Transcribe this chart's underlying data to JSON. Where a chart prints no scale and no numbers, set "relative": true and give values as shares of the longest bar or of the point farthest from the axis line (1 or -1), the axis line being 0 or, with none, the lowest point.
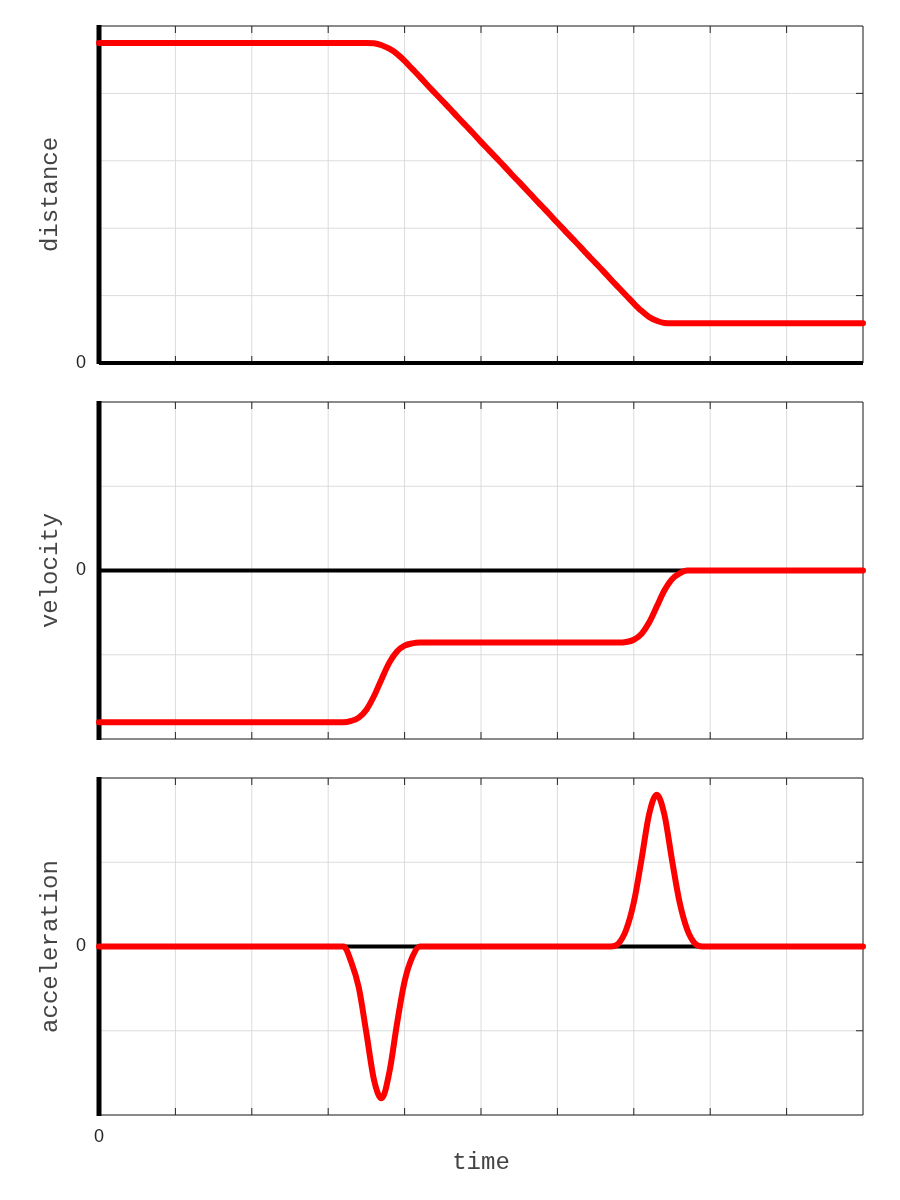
{
  "chart_data": [
    {
      "type": "line",
      "ylabel": "distance",
      "relative": true,
      "grid": true,
      "color": "#ff0000",
      "ref_lines": [
        {
          "axis": "y",
          "value": 0,
          "label": "0",
          "color": "#000000"
        }
      ],
      "categories": [
        null,
        null,
        null,
        null,
        null,
        null,
        null,
        null,
        null,
        null,
        null,
        null,
        null,
        null,
        null,
        null,
        null,
        null,
        null,
        null,
        null,
        null,
        null,
        null,
        null,
        null,
        null,
        null,
        null,
        null,
        null,
        null,
        null,
        null,
        null,
        null,
        null,
        null,
        null,
        null,
        null,
        null,
        null,
        null,
        null,
        null,
        null,
        null,
        null,
        null,
        null,
        null,
        null,
        null,
        null,
        null,
        null,
        null,
        null,
        null,
        null,
        null,
        null,
        null,
        null,
        null,
        null,
        null,
        null,
        null,
        null,
        null,
        null,
        null,
        null,
        null,
        null,
        null,
        null,
        null,
        null,
        null,
        null,
        null,
        null,
        null,
        null,
        null,
        null,
        null,
        null,
        null,
        null,
        null,
        null,
        null,
        null,
        null,
        null,
        null,
        null
      ],
      "values": [
        1,
        1,
        1,
        1,
        1,
        1,
        1,
        1,
        1,
        1,
        1,
        1,
        1,
        1,
        1,
        1,
        1,
        1,
        1,
        1,
        1,
        1,
        1,
        1,
        1,
        1,
        1,
        1,
        1,
        1,
        1,
        1,
        1,
        1,
        1,
        1,
        0.999,
        0.993,
        0.982,
        0.966,
        0.944,
        0.919,
        0.894,
        0.868,
        0.843,
        0.818,
        0.793,
        0.767,
        0.742,
        0.717,
        0.691,
        0.666,
        0.641,
        0.616,
        0.59,
        0.565,
        0.54,
        0.514,
        0.489,
        0.464,
        0.438,
        0.413,
        0.388,
        0.363,
        0.337,
        0.312,
        0.287,
        0.261,
        0.236,
        0.211,
        0.186,
        0.163,
        0.144,
        0.132,
        0.125,
        0.124,
        0.124,
        0.124,
        0.124,
        0.124,
        0.124,
        0.124,
        0.124,
        0.124,
        0.124,
        0.124,
        0.124,
        0.124,
        0.124,
        0.124,
        0.124,
        0.124,
        0.124,
        0.124,
        0.124,
        0.124,
        0.124,
        0.124,
        0.124,
        0.124,
        0.124
      ]
    },
    {
      "type": "line",
      "ylabel": "velocity",
      "relative": true,
      "grid": true,
      "color": "#ff0000",
      "ref_lines": [
        {
          "axis": "y",
          "value": 0,
          "label": "0",
          "color": "#000000"
        }
      ],
      "categories": [
        null,
        null,
        null,
        null,
        null,
        null,
        null,
        null,
        null,
        null,
        null,
        null,
        null,
        null,
        null,
        null,
        null,
        null,
        null,
        null,
        null,
        null,
        null,
        null,
        null,
        null,
        null,
        null,
        null,
        null,
        null,
        null,
        null,
        null,
        null,
        null,
        null,
        null,
        null,
        null,
        null,
        null,
        null,
        null,
        null,
        null,
        null,
        null,
        null,
        null,
        null,
        null,
        null,
        null,
        null,
        null,
        null,
        null,
        null,
        null,
        null,
        null,
        null,
        null,
        null,
        null,
        null,
        null,
        null,
        null,
        null,
        null,
        null,
        null,
        null,
        null,
        null,
        null,
        null,
        null,
        null,
        null,
        null,
        null,
        null,
        null,
        null,
        null,
        null,
        null,
        null,
        null,
        null,
        null,
        null,
        null,
        null,
        null,
        null,
        null,
        null
      ],
      "values": [
        -1,
        -1,
        -1,
        -1,
        -1,
        -1,
        -1,
        -1,
        -1,
        -1,
        -1,
        -1,
        -1,
        -1,
        -1,
        -1,
        -1,
        -1,
        -1,
        -1,
        -1,
        -1,
        -1,
        -1,
        -1,
        -1,
        -1,
        -1,
        -1,
        -1,
        -1,
        -1,
        -1,
        -0.991,
        -0.969,
        -0.917,
        -0.827,
        -0.714,
        -0.607,
        -0.533,
        -0.495,
        -0.48,
        -0.475,
        -0.475,
        -0.475,
        -0.475,
        -0.475,
        -0.475,
        -0.475,
        -0.475,
        -0.475,
        -0.475,
        -0.475,
        -0.475,
        -0.475,
        -0.475,
        -0.475,
        -0.475,
        -0.475,
        -0.475,
        -0.475,
        -0.475,
        -0.475,
        -0.475,
        -0.475,
        -0.475,
        -0.475,
        -0.475,
        -0.475,
        -0.471,
        -0.456,
        -0.418,
        -0.343,
        -0.238,
        -0.132,
        -0.057,
        -0.019,
        0,
        0,
        0,
        0,
        0,
        0,
        0,
        0,
        0,
        0,
        0,
        0,
        0,
        0,
        0,
        0,
        0,
        0,
        0,
        0,
        0,
        0,
        0,
        0
      ]
    },
    {
      "type": "line",
      "ylabel": "acceleration",
      "xlabel": "time",
      "relative": true,
      "grid": true,
      "color": "#ff0000",
      "ref_lines": [
        {
          "axis": "y",
          "value": 0,
          "label": "0",
          "color": "#000000"
        }
      ],
      "annotations": [
        "0"
      ],
      "categories": [
        null,
        null,
        null,
        null,
        null,
        null,
        null,
        null,
        null,
        null,
        null,
        null,
        null,
        null,
        null,
        null,
        null,
        null,
        null,
        null,
        null,
        null,
        null,
        null,
        null,
        null,
        null,
        null,
        null,
        null,
        null,
        null,
        null,
        null,
        null,
        null,
        null,
        null,
        null,
        null,
        null,
        null,
        null,
        null,
        null,
        null,
        null,
        null,
        null,
        null,
        null,
        null,
        null,
        null,
        null,
        null,
        null,
        null,
        null,
        null,
        null,
        null,
        null,
        null,
        null,
        null,
        null,
        null,
        null,
        null,
        null,
        null,
        null,
        null,
        null,
        null,
        null,
        null,
        null,
        null,
        null,
        null,
        null,
        null,
        null,
        null,
        null,
        null,
        null,
        null,
        null,
        null,
        null,
        null,
        null,
        null,
        null,
        null,
        null,
        null,
        null
      ],
      "values": [
        0,
        0,
        0,
        0,
        0,
        0,
        0,
        0,
        0,
        0,
        0,
        0,
        0,
        0,
        0,
        0,
        0,
        0,
        0,
        0,
        0,
        0,
        0,
        0,
        0,
        0,
        0,
        0,
        0,
        0,
        0,
        0,
        0,
        -0.1,
        -0.27,
        -0.57,
        -0.88,
        -1,
        -0.83,
        -0.51,
        -0.23,
        -0.07,
        0,
        0,
        0,
        0,
        0,
        0,
        0,
        0,
        0,
        0,
        0,
        0,
        0,
        0,
        0,
        0,
        0,
        0,
        0,
        0,
        0,
        0,
        0,
        0,
        0,
        0,
        0.02,
        0.11,
        0.29,
        0.57,
        0.87,
        1,
        0.87,
        0.57,
        0.29,
        0.11,
        0.02,
        0,
        0,
        0,
        0,
        0,
        0,
        0,
        0,
        0,
        0,
        0,
        0,
        0,
        0,
        0,
        0,
        0,
        0,
        0,
        0,
        0,
        0
      ]
    }
  ]
}
